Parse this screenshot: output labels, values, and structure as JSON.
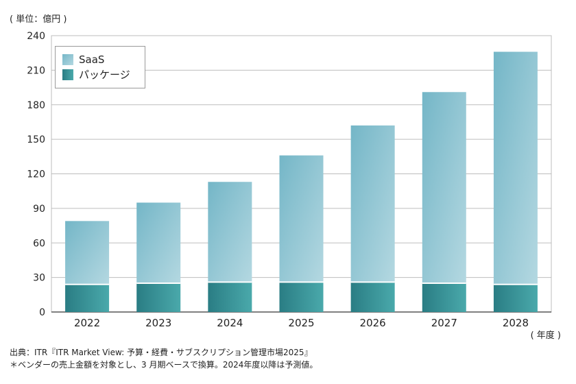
{
  "header": {
    "unit_label": "( 単位：億円 )"
  },
  "footer": {
    "x_unit_label": "( 年度 )",
    "source": "出典：ITR『ITR Market View: 予算・経費・サブスクリプション管理市場2025』",
    "note": "＊ベンダーの売上金額を対象とし、3 月期ベースで換算。2024年度以降は予測値。"
  },
  "colors": {
    "saas_top": "#74b6c7",
    "saas_bottom": "#b4d8e1",
    "package_left": "#2a7d84",
    "package_right": "#4aa9ab",
    "grid": "#bdbdbd",
    "axis": "#555555"
  },
  "chart_data": {
    "type": "bar",
    "stacked": true,
    "categories": [
      "2022",
      "2023",
      "2024",
      "2025",
      "2026",
      "2027",
      "2028"
    ],
    "series": [
      {
        "name": "パッケージ",
        "values": [
          24,
          25,
          26,
          26,
          26,
          25,
          24
        ]
      },
      {
        "name": "SaaS",
        "values": [
          55,
          70,
          87,
          110,
          136,
          166,
          202
        ]
      }
    ],
    "title": "",
    "xlabel": "( 年度 )",
    "ylabel": "( 単位：億円 )",
    "ylim": [
      0,
      240
    ],
    "yticks": [
      0,
      30,
      60,
      90,
      120,
      150,
      180,
      210,
      240
    ],
    "grid": true,
    "legend_position": "top-left",
    "legend": [
      "SaaS",
      "パッケージ"
    ]
  }
}
